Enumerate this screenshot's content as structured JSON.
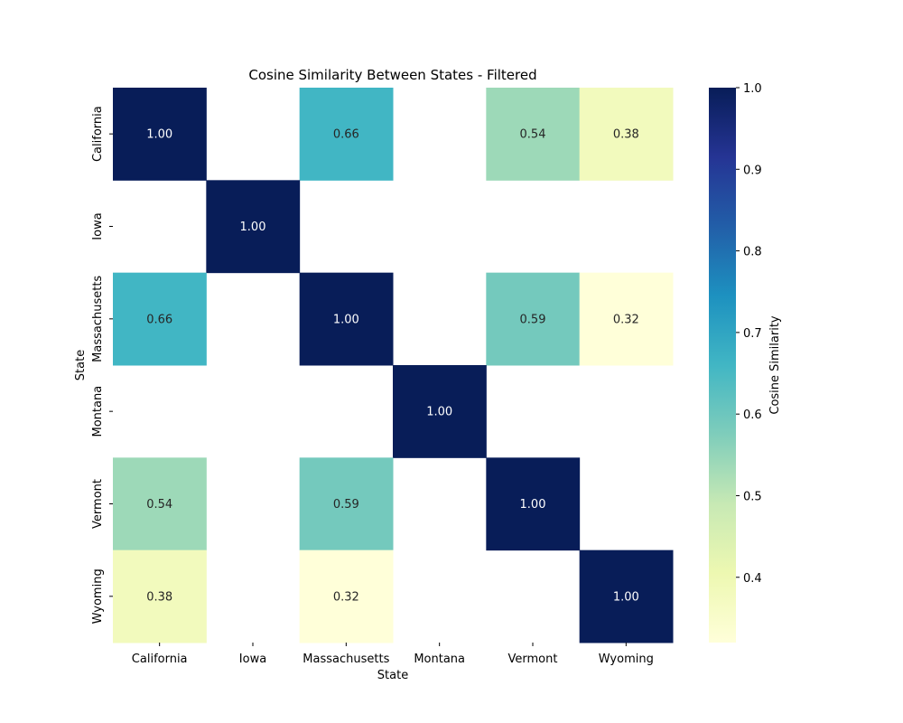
{
  "chart_data": {
    "type": "heatmap",
    "title": "Cosine Similarity Between States - Filtered",
    "xlabel": "State",
    "ylabel": "State",
    "x_categories": [
      "California",
      "Iowa",
      "Massachusetts",
      "Montana",
      "Vermont",
      "Wyoming"
    ],
    "y_categories": [
      "California",
      "Iowa",
      "Massachusetts",
      "Montana",
      "Vermont",
      "Wyoming"
    ],
    "values": [
      [
        1.0,
        null,
        0.66,
        null,
        0.54,
        0.38
      ],
      [
        null,
        1.0,
        null,
        null,
        null,
        null
      ],
      [
        0.66,
        null,
        1.0,
        null,
        0.59,
        0.32
      ],
      [
        null,
        null,
        null,
        1.0,
        null,
        null
      ],
      [
        0.54,
        null,
        0.59,
        null,
        1.0,
        null
      ],
      [
        0.38,
        null,
        0.32,
        null,
        null,
        1.0
      ]
    ],
    "value_format": "0.00",
    "colormap": "YlGnBu",
    "vmin": 0.32,
    "vmax": 1.0,
    "colorbar": {
      "label": "Cosine Similarity",
      "ticks": [
        0.4,
        0.5,
        0.6,
        0.7,
        0.8,
        0.9,
        1.0
      ],
      "tick_labels": [
        "0.4",
        "0.5",
        "0.6",
        "0.7",
        "0.8",
        "0.9",
        "1.0"
      ]
    },
    "colors": {
      "stops": [
        "#ffffd9",
        "#edf8b1",
        "#c7e9b4",
        "#7fcdbb",
        "#41b6c4",
        "#1d91c0",
        "#225ea8",
        "#253494",
        "#081d58"
      ],
      "label_dark": "#262626",
      "label_light": "#ffffff",
      "missing": "#ffffff"
    }
  }
}
